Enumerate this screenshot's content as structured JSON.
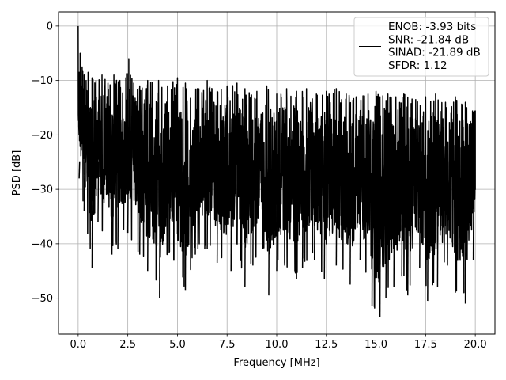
{
  "chart_data": {
    "type": "line",
    "title": "",
    "xlabel": "Frequency [MHz]",
    "ylabel": "PSD [dB]",
    "xlim": [
      -0.99,
      20.99
    ],
    "ylim": [
      -56.6,
      2.6
    ],
    "xticks": [
      0.0,
      2.5,
      5.0,
      7.5,
      10.0,
      12.5,
      15.0,
      17.5,
      20.0
    ],
    "xtick_labels": [
      "0.0",
      "2.5",
      "5.0",
      "7.5",
      "10.0",
      "12.5",
      "15.0",
      "17.5",
      "20.0"
    ],
    "yticks": [
      0,
      -10,
      -20,
      -30,
      -40,
      -50
    ],
    "ytick_labels": [
      "0",
      "−10",
      "−20",
      "−30",
      "−40",
      "−50"
    ],
    "grid": true,
    "legend_position": "top-right",
    "series_color": "#000000",
    "series": [
      {
        "name": "ENOB: -3.93 bits\nSNR: -21.84 dB\nSINAD: -21.89 dB\nSFDR: 1.12",
        "x": [
          0.0,
          0.05,
          0.1,
          0.15,
          0.2,
          0.3,
          0.4,
          0.5,
          0.7,
          0.9,
          1.2,
          1.5,
          1.8,
          2.1,
          2.4,
          2.55,
          2.8,
          3.1,
          3.5,
          4.05,
          4.5,
          5.0,
          5.4,
          6.0,
          6.5,
          7.0,
          7.5,
          8.0,
          8.4,
          9.0,
          9.5,
          10.0,
          10.5,
          11.0,
          11.5,
          12.0,
          12.5,
          13.0,
          13.5,
          14.0,
          14.6,
          15.0,
          15.2,
          15.6,
          16.0,
          16.4,
          17.0,
          17.5,
          18.0,
          18.5,
          19.0,
          19.5,
          20.0
        ],
        "y": [
          0.0,
          -8.5,
          -5.0,
          -11.0,
          -7.5,
          -9.0,
          -10.0,
          -8.5,
          -9.5,
          -10.0,
          -9.0,
          -10.5,
          -9.0,
          -10.0,
          -9.5,
          -6.0,
          -10.5,
          -11.0,
          -10.0,
          -10.0,
          -11.0,
          -9.5,
          -10.5,
          -11.5,
          -10.0,
          -12.0,
          -11.0,
          -10.5,
          -11.5,
          -12.0,
          -11.0,
          -12.5,
          -11.5,
          -12.0,
          -11.5,
          -12.5,
          -12.0,
          -11.5,
          -12.5,
          -13.0,
          -12.5,
          -12.0,
          -13.0,
          -12.5,
          -13.0,
          -12.5,
          -13.5,
          -13.0,
          -12.5,
          -14.0,
          -13.0,
          -14.0,
          -15.5
        ],
        "lower_envelope_x": [
          0.05,
          0.3,
          0.7,
          1.0,
          1.7,
          2.0,
          2.5,
          3.1,
          3.5,
          4.1,
          4.5,
          5.4,
          5.9,
          6.5,
          7.0,
          7.7,
          8.0,
          8.4,
          8.8,
          9.3,
          9.6,
          10.0,
          10.4,
          11.0,
          11.3,
          11.9,
          12.4,
          13.0,
          13.7,
          14.2,
          14.8,
          15.2,
          15.5,
          15.9,
          16.3,
          16.6,
          17.2,
          17.6,
          18.1,
          18.6,
          19.0,
          19.5,
          19.9
        ],
        "lower_envelope_y": [
          -28.0,
          -34.0,
          -44.5,
          -36.0,
          -42.0,
          -41.0,
          -38.0,
          -42.0,
          -45.0,
          -50.0,
          -42.0,
          -48.5,
          -42.0,
          -41.0,
          -43.5,
          -45.0,
          -40.0,
          -48.0,
          -44.0,
          -41.0,
          -49.5,
          -45.0,
          -44.0,
          -46.5,
          -44.5,
          -43.0,
          -46.5,
          -44.0,
          -47.5,
          -43.0,
          -51.5,
          -53.5,
          -50.0,
          -48.0,
          -46.0,
          -49.5,
          -44.5,
          -50.5,
          -48.0,
          -44.0,
          -49.0,
          -51.0,
          -43.0
        ]
      }
    ]
  }
}
